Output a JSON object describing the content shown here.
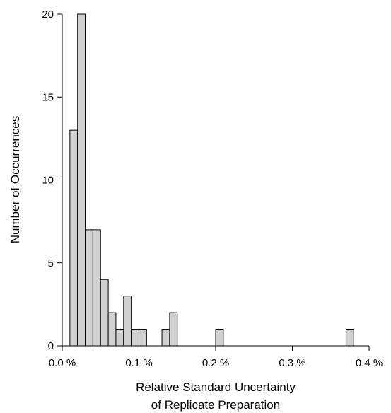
{
  "chart_data": {
    "type": "bar",
    "subtype": "histogram",
    "title": "",
    "xlabel_lines": [
      "Relative Standard Uncertainty",
      "of Replicate Preparation"
    ],
    "ylabel": "Number of Occurrences",
    "xlim": [
      0,
      0.4
    ],
    "ylim": [
      0,
      20
    ],
    "bin_width": 0.01,
    "x_ticks": [
      0,
      0.1,
      0.2,
      0.3,
      0.4
    ],
    "x_tick_labels": [
      "0.0 %",
      "0.1 %",
      "0.2 %",
      "0.3 %",
      "0.4 %"
    ],
    "y_ticks": [
      0,
      5,
      10,
      15,
      20
    ],
    "y_tick_labels": [
      "0",
      "5",
      "10",
      "15",
      "20"
    ],
    "grid": false,
    "colors": {
      "bar_fill": "#d0d0d0",
      "bar_edge": "#000000",
      "axis": "#000000"
    },
    "bins": [
      {
        "x0": 0.01,
        "x1": 0.02,
        "count": 13
      },
      {
        "x0": 0.02,
        "x1": 0.03,
        "count": 20
      },
      {
        "x0": 0.03,
        "x1": 0.04,
        "count": 7
      },
      {
        "x0": 0.04,
        "x1": 0.05,
        "count": 7
      },
      {
        "x0": 0.05,
        "x1": 0.06,
        "count": 4
      },
      {
        "x0": 0.06,
        "x1": 0.07,
        "count": 2
      },
      {
        "x0": 0.07,
        "x1": 0.08,
        "count": 1
      },
      {
        "x0": 0.08,
        "x1": 0.09,
        "count": 3
      },
      {
        "x0": 0.09,
        "x1": 0.1,
        "count": 1
      },
      {
        "x0": 0.1,
        "x1": 0.11,
        "count": 1
      },
      {
        "x0": 0.13,
        "x1": 0.14,
        "count": 1
      },
      {
        "x0": 0.14,
        "x1": 0.15,
        "count": 2
      },
      {
        "x0": 0.2,
        "x1": 0.21,
        "count": 1
      },
      {
        "x0": 0.37,
        "x1": 0.38,
        "count": 1
      }
    ]
  }
}
